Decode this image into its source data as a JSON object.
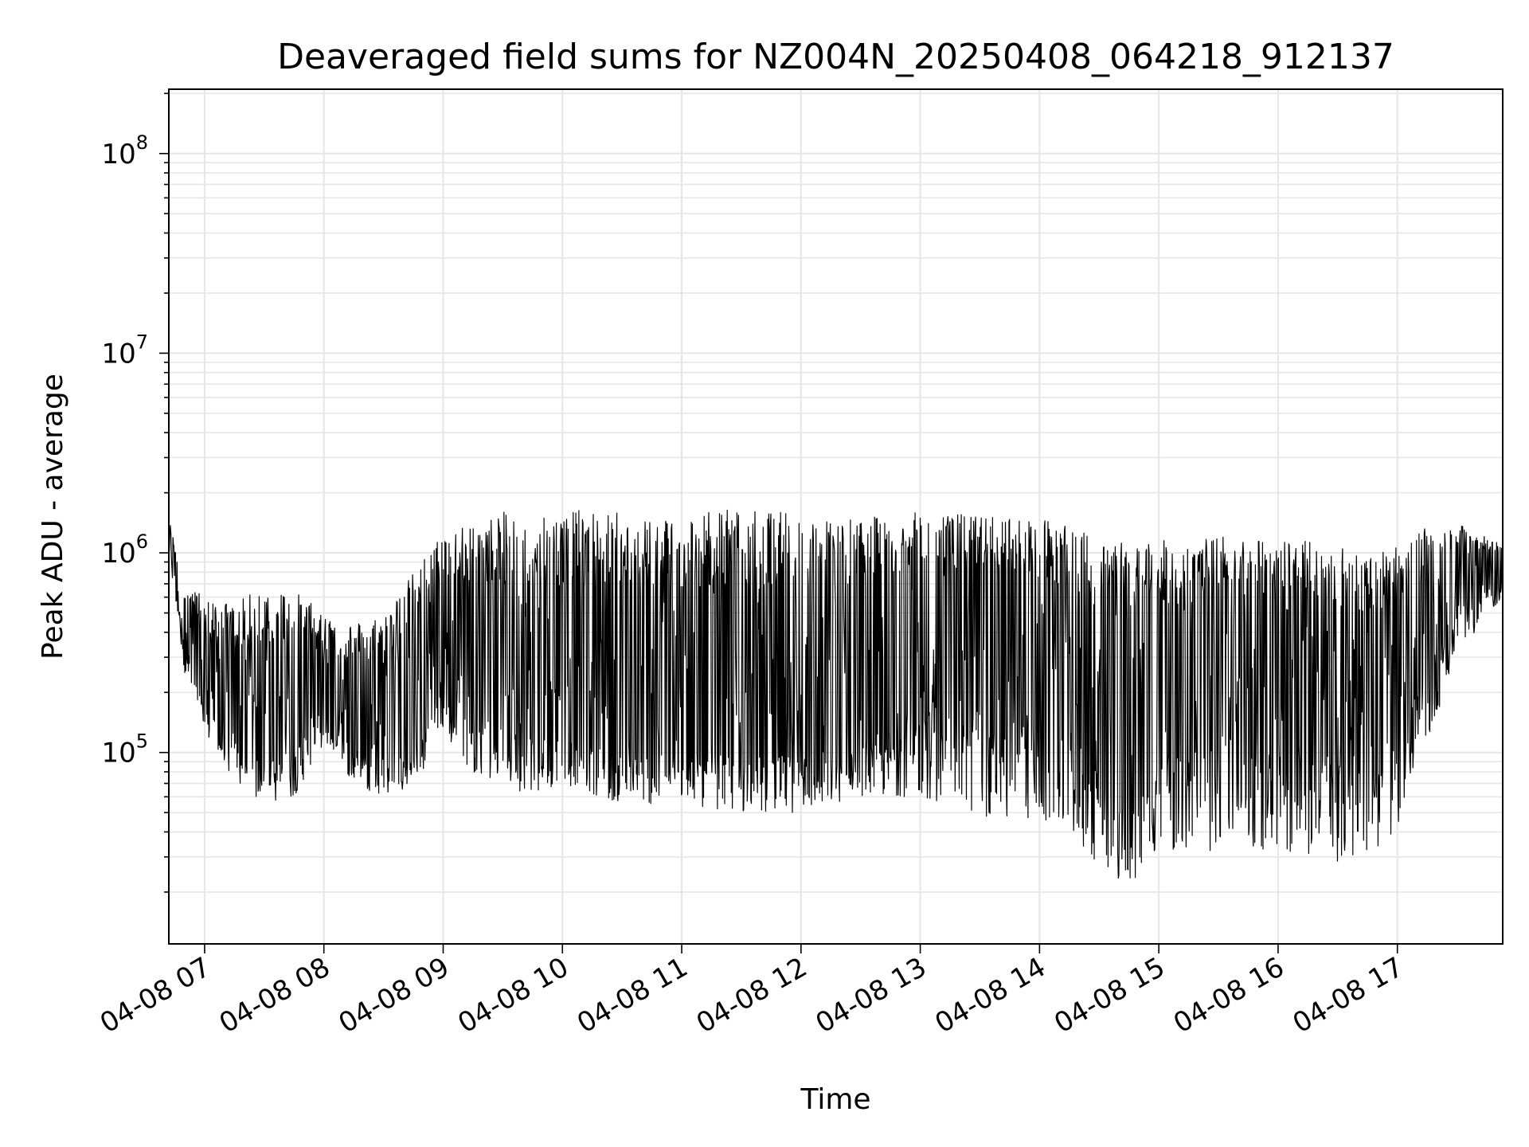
{
  "chart_data": {
    "type": "line",
    "title": "Deaveraged field sums for NZ004N_20250408_064218_912137",
    "xlabel": "Time",
    "ylabel": "Peak ADU - average",
    "y_scale": "log",
    "ylim": [
      11000,
      210000000
    ],
    "xlim": [
      "2025-04-08 06:42",
      "2025-04-08 17:53"
    ],
    "grid": true,
    "x_ticks": [
      "04-08 07",
      "04-08 08",
      "04-08 09",
      "04-08 10",
      "04-08 11",
      "04-08 12",
      "04-08 13",
      "04-08 14",
      "04-08 15",
      "04-08 16",
      "04-08 17"
    ],
    "y_ticks": [
      {
        "base": "10",
        "exp": "5"
      },
      {
        "base": "10",
        "exp": "6"
      },
      {
        "base": "10",
        "exp": "7"
      },
      {
        "base": "10",
        "exp": "8"
      }
    ],
    "line_color": "#000000",
    "envelope": {
      "x": [
        "2025-04-08 06:42",
        "2025-04-08 06:50",
        "2025-04-08 07:00",
        "2025-04-08 07:15",
        "2025-04-08 07:30",
        "2025-04-08 07:45",
        "2025-04-08 08:00",
        "2025-04-08 08:15",
        "2025-04-08 08:30",
        "2025-04-08 08:45",
        "2025-04-08 09:00",
        "2025-04-08 09:15",
        "2025-04-08 09:30",
        "2025-04-08 09:45",
        "2025-04-08 10:00",
        "2025-04-08 10:30",
        "2025-04-08 11:00",
        "2025-04-08 11:30",
        "2025-04-08 12:00",
        "2025-04-08 12:30",
        "2025-04-08 13:00",
        "2025-04-08 13:30",
        "2025-04-08 14:00",
        "2025-04-08 14:20",
        "2025-04-08 14:40",
        "2025-04-08 15:00",
        "2025-04-08 15:30",
        "2025-04-08 16:00",
        "2025-04-08 16:30",
        "2025-04-08 16:55",
        "2025-04-08 17:10",
        "2025-04-08 17:30",
        "2025-04-08 17:53"
      ],
      "high": [
        1500000,
        700000,
        600000,
        550000,
        700000,
        650000,
        500000,
        450000,
        500000,
        800000,
        1300000,
        1400000,
        1600000,
        1700000,
        1650000,
        1600000,
        1600000,
        1650000,
        1600000,
        1500000,
        1600000,
        1550000,
        1500000,
        1300000,
        1150000,
        1150000,
        1200000,
        1200000,
        1100000,
        1000000,
        1300000,
        1400000,
        1100000
      ],
      "low": [
        1000000,
        250000,
        130000,
        70000,
        55000,
        60000,
        110000,
        70000,
        60000,
        65000,
        120000,
        80000,
        70000,
        60000,
        70000,
        55000,
        55000,
        50000,
        50000,
        60000,
        60000,
        48000,
        45000,
        35000,
        20000,
        30000,
        32000,
        32000,
        28000,
        32000,
        80000,
        300000,
        600000
      ],
      "median": [
        1100000,
        400000,
        200000,
        140000,
        120000,
        150000,
        220000,
        140000,
        110000,
        150000,
        300000,
        250000,
        220000,
        200000,
        180000,
        150000,
        150000,
        150000,
        150000,
        170000,
        350000,
        300000,
        300000,
        200000,
        100000,
        200000,
        300000,
        300000,
        200000,
        150000,
        400000,
        800000,
        800000
      ]
    }
  }
}
